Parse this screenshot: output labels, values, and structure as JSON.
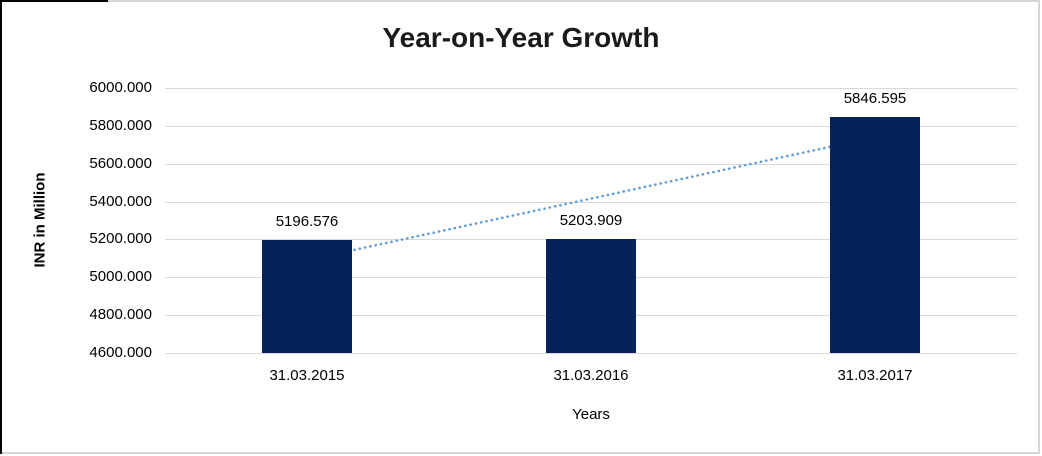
{
  "chart_data": {
    "type": "bar",
    "title": "Year-on-Year Growth",
    "xlabel": "Years",
    "ylabel": "INR in Million",
    "categories": [
      "31.03.2015",
      "31.03.2016",
      "31.03.2017"
    ],
    "values": [
      5196.576,
      5203.909,
      5846.595
    ],
    "value_labels": [
      "5196.576",
      "5203.909",
      "5846.595"
    ],
    "ylim": [
      4600,
      6000
    ],
    "yticks": [
      4600,
      4800,
      5000,
      5200,
      5400,
      5600,
      5800,
      6000
    ],
    "ytick_labels": [
      "4600.000",
      "4800.000",
      "5000.000",
      "5200.000",
      "5400.000",
      "5600.000",
      "5800.000",
      "6000.000"
    ],
    "grid": true,
    "legend": false,
    "trendline": {
      "kind": "linear",
      "style": "dotted",
      "span": "first-to-last-category"
    },
    "colors": {
      "bar": "#07215c",
      "trendline": "#5b9bd5",
      "gridline": "#d9d9d9",
      "title_text": "#1a1a1a",
      "axis_text": "#000000",
      "frame": "#d6d6d6",
      "edge_black": "#000000"
    }
  }
}
